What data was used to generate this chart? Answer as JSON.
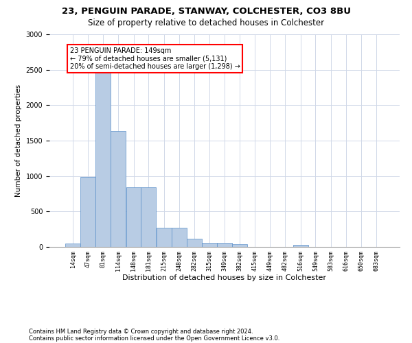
{
  "title_line1": "23, PENGUIN PARADE, STANWAY, COLCHESTER, CO3 8BU",
  "title_line2": "Size of property relative to detached houses in Colchester",
  "xlabel": "Distribution of detached houses by size in Colchester",
  "ylabel": "Number of detached properties",
  "annotation_line1": "23 PENGUIN PARADE: 149sqm",
  "annotation_line2": "← 79% of detached houses are smaller (5,131)",
  "annotation_line3": "20% of semi-detached houses are larger (1,298) →",
  "footer_line1": "Contains HM Land Registry data © Crown copyright and database right 2024.",
  "footer_line2": "Contains public sector information licensed under the Open Government Licence v3.0.",
  "bar_edges": [
    14,
    47,
    81,
    114,
    148,
    181,
    215,
    248,
    282,
    315,
    349,
    382,
    415,
    449,
    482,
    516,
    549,
    583,
    616,
    650,
    683
  ],
  "bar_heights": [
    50,
    990,
    2470,
    1640,
    840,
    840,
    270,
    270,
    120,
    55,
    55,
    40,
    0,
    0,
    0,
    25,
    0,
    0,
    0,
    0,
    0
  ],
  "bar_color": "#b8cce4",
  "bar_edge_color": "#5b8fc9",
  "ylim": [
    0,
    3000
  ],
  "yticks": [
    0,
    500,
    1000,
    1500,
    2000,
    2500,
    3000
  ],
  "background_color": "#ffffff",
  "grid_color": "#d0d8e8",
  "title_fontsize": 9.5,
  "subtitle_fontsize": 8.5,
  "ylabel_fontsize": 7.5,
  "xlabel_fontsize": 8,
  "tick_fontsize": 6,
  "footer_fontsize": 6,
  "annot_fontsize": 7
}
